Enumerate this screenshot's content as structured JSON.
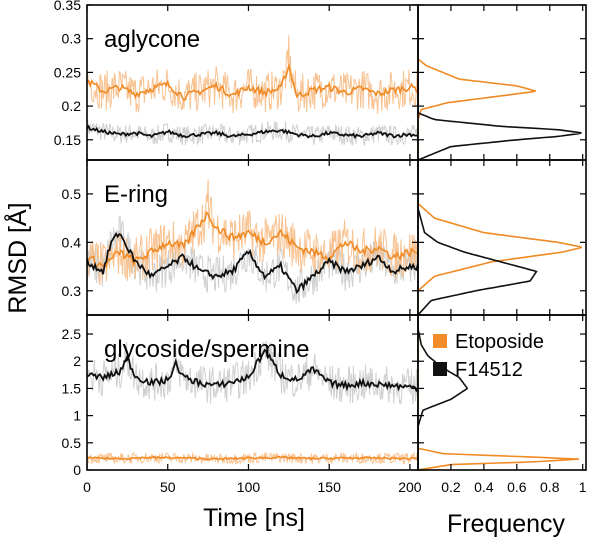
{
  "figure": {
    "ylabel": "RMSD [Å]",
    "xlabel": "Time [ns]",
    "hist_xlabel": "Frequency"
  },
  "legend": [
    {
      "name": "Etoposide",
      "color": "#f28c28"
    },
    {
      "name": "F14512",
      "color": "#111111"
    }
  ],
  "colors": {
    "etoposide_raw": "#f7bb85",
    "etoposide_avg": "#f08a24",
    "f14512_raw": "#c9ccca",
    "f14512_avg": "#111111"
  },
  "chart_data": [
    {
      "type": "line",
      "title": "aglycone",
      "xlim": [
        0,
        205
      ],
      "ylim": [
        0.12,
        0.35
      ],
      "xticks": [
        0,
        50,
        100,
        150,
        200
      ],
      "yticks": [
        0.15,
        0.2,
        0.25,
        0.3,
        0.35
      ],
      "ytick_labels": [
        "0.15",
        "0.2",
        "0.25",
        "0.3",
        "0.35"
      ],
      "series": [
        {
          "name": "Etoposide",
          "raw_mean": 0.222,
          "raw_noise": 0.03,
          "raw_spikes": [
            {
              "x": 125,
              "y": 0.305
            }
          ],
          "x": [
            0,
            10,
            20,
            30,
            40,
            50,
            60,
            70,
            80,
            90,
            100,
            110,
            120,
            125,
            130,
            140,
            150,
            160,
            170,
            180,
            190,
            200,
            205
          ],
          "y": [
            0.238,
            0.222,
            0.228,
            0.218,
            0.226,
            0.232,
            0.214,
            0.222,
            0.23,
            0.216,
            0.228,
            0.22,
            0.226,
            0.26,
            0.215,
            0.224,
            0.228,
            0.22,
            0.226,
            0.218,
            0.224,
            0.228,
            0.226
          ]
        },
        {
          "name": "F14512",
          "raw_mean": 0.158,
          "raw_noise": 0.015,
          "x": [
            0,
            10,
            20,
            30,
            40,
            50,
            60,
            70,
            80,
            90,
            100,
            110,
            120,
            130,
            140,
            150,
            160,
            170,
            180,
            190,
            200,
            205
          ],
          "y": [
            0.168,
            0.162,
            0.158,
            0.16,
            0.155,
            0.162,
            0.156,
            0.158,
            0.16,
            0.155,
            0.158,
            0.162,
            0.164,
            0.158,
            0.155,
            0.16,
            0.157,
            0.155,
            0.16,
            0.156,
            0.158,
            0.157
          ]
        }
      ]
    },
    {
      "type": "line",
      "title": "E-ring",
      "xlim": [
        0,
        205
      ],
      "ylim": [
        0.25,
        0.57
      ],
      "xticks": [
        0,
        50,
        100,
        150,
        200
      ],
      "yticks": [
        0.3,
        0.4,
        0.5
      ],
      "ytick_labels": [
        "0.3",
        "0.4",
        "0.5"
      ],
      "series": [
        {
          "name": "Etoposide",
          "raw_mean": 0.39,
          "raw_noise": 0.05,
          "raw_spikes": [
            {
              "x": 75,
              "y": 0.53
            }
          ],
          "x": [
            0,
            10,
            20,
            30,
            40,
            50,
            60,
            70,
            75,
            80,
            90,
            100,
            110,
            120,
            130,
            140,
            150,
            160,
            170,
            180,
            190,
            200,
            205
          ],
          "y": [
            0.37,
            0.35,
            0.38,
            0.36,
            0.38,
            0.4,
            0.39,
            0.44,
            0.46,
            0.43,
            0.41,
            0.42,
            0.4,
            0.42,
            0.39,
            0.38,
            0.37,
            0.4,
            0.38,
            0.39,
            0.37,
            0.38,
            0.38
          ]
        },
        {
          "name": "F14512",
          "raw_mean": 0.35,
          "raw_noise": 0.04,
          "x": [
            0,
            10,
            15,
            20,
            30,
            40,
            50,
            60,
            70,
            80,
            90,
            100,
            110,
            120,
            130,
            140,
            150,
            160,
            170,
            180,
            190,
            200,
            205
          ],
          "y": [
            0.36,
            0.34,
            0.4,
            0.42,
            0.36,
            0.33,
            0.35,
            0.37,
            0.34,
            0.33,
            0.34,
            0.38,
            0.33,
            0.35,
            0.3,
            0.33,
            0.36,
            0.34,
            0.35,
            0.37,
            0.34,
            0.35,
            0.35
          ]
        }
      ]
    },
    {
      "type": "line",
      "title": "glycoside/spermine",
      "xlim": [
        0,
        205
      ],
      "ylim": [
        0,
        2.85
      ],
      "xticks": [
        0,
        50,
        100,
        150,
        200
      ],
      "xtick_labels": [
        "0",
        "50",
        "100",
        "150",
        "200"
      ],
      "yticks": [
        0,
        0.5,
        1,
        1.5,
        2,
        2.5
      ],
      "ytick_labels": [
        "0",
        "0.5",
        "1",
        "1.5",
        "2",
        "2.5"
      ],
      "series": [
        {
          "name": "Etoposide",
          "raw_mean": 0.22,
          "raw_noise": 0.1,
          "x": [
            0,
            20,
            40,
            60,
            80,
            100,
            120,
            140,
            160,
            180,
            200,
            205
          ],
          "y": [
            0.22,
            0.21,
            0.23,
            0.22,
            0.2,
            0.22,
            0.23,
            0.21,
            0.22,
            0.22,
            0.21,
            0.22
          ]
        },
        {
          "name": "F14512",
          "raw_mean": 1.7,
          "raw_noise": 0.35,
          "x": [
            0,
            10,
            20,
            25,
            30,
            40,
            50,
            55,
            60,
            70,
            80,
            90,
            100,
            110,
            120,
            130,
            140,
            150,
            160,
            170,
            180,
            190,
            200,
            205
          ],
          "y": [
            1.75,
            1.7,
            1.8,
            2.05,
            1.72,
            1.6,
            1.65,
            1.95,
            1.7,
            1.6,
            1.55,
            1.62,
            1.7,
            2.2,
            1.75,
            1.65,
            1.85,
            1.6,
            1.55,
            1.6,
            1.58,
            1.55,
            1.52,
            1.52
          ]
        }
      ]
    },
    {
      "type": "line",
      "title": "",
      "orientation": "horizontal-histogram",
      "xlim": [
        0,
        1.02
      ],
      "xticks": [
        0.2,
        0.4,
        0.6,
        0.8,
        1
      ],
      "xtick_labels": [
        "0.2",
        "0.4",
        "0.6",
        "0.8",
        "1"
      ],
      "panels": [
        {
          "for": "aglycone",
          "series": [
            {
              "name": "Etoposide",
              "rmsd": [
                0.12,
                0.18,
                0.195,
                0.205,
                0.215,
                0.222,
                0.23,
                0.24,
                0.26,
                0.27,
                0.35
              ],
              "frequency": [
                0,
                0,
                0.02,
                0.18,
                0.5,
                0.72,
                0.6,
                0.25,
                0.05,
                0,
                0
              ]
            },
            {
              "name": "F14512",
              "rmsd": [
                0.12,
                0.14,
                0.15,
                0.155,
                0.16,
                0.165,
                0.17,
                0.18,
                0.19,
                0.35
              ],
              "frequency": [
                0,
                0.2,
                0.6,
                0.85,
                1,
                0.85,
                0.5,
                0.1,
                0,
                0
              ]
            }
          ]
        },
        {
          "for": "E-ring",
          "series": [
            {
              "name": "Etoposide",
              "rmsd": [
                0.25,
                0.3,
                0.33,
                0.36,
                0.38,
                0.39,
                0.4,
                0.42,
                0.45,
                0.48,
                0.57
              ],
              "frequency": [
                0,
                0,
                0.1,
                0.45,
                0.88,
                1,
                0.85,
                0.4,
                0.1,
                0,
                0
              ]
            },
            {
              "name": "F14512",
              "rmsd": [
                0.25,
                0.28,
                0.3,
                0.32,
                0.34,
                0.36,
                0.38,
                0.4,
                0.42,
                0.47,
                0.57
              ],
              "frequency": [
                0,
                0.08,
                0.35,
                0.68,
                0.72,
                0.5,
                0.28,
                0.12,
                0.04,
                0,
                0
              ]
            }
          ]
        },
        {
          "for": "glycoside/spermine",
          "series": [
            {
              "name": "Etoposide",
              "rmsd": [
                0,
                0.1,
                0.15,
                0.2,
                0.25,
                0.3,
                0.4,
                2.85
              ],
              "frequency": [
                0,
                0.2,
                0.7,
                0.98,
                0.6,
                0.15,
                0,
                0
              ]
            },
            {
              "name": "F14512",
              "rmsd": [
                0,
                0.8,
                1.1,
                1.3,
                1.5,
                1.7,
                1.9,
                2.1,
                2.3,
                2.6,
                2.85
              ],
              "frequency": [
                0,
                0,
                0.03,
                0.2,
                0.3,
                0.25,
                0.14,
                0.06,
                0.02,
                0,
                0
              ]
            }
          ]
        }
      ]
    }
  ]
}
